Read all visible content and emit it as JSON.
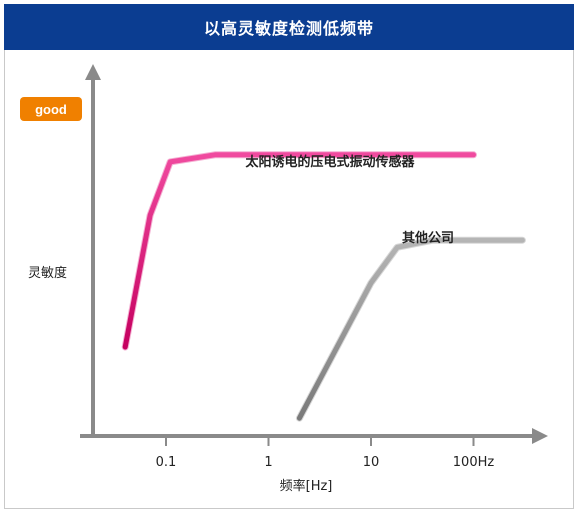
{
  "title": "以高灵敏度检测低频带",
  "chart_data": {
    "type": "line",
    "title": "以高灵敏度检测低频带",
    "xlabel": "频率[Hz]",
    "ylabel": "灵敏度",
    "x_scale": "log",
    "x_ticks": [
      "0.1",
      "1",
      "10",
      "100Hz"
    ],
    "y_top_badge": "good",
    "series": [
      {
        "name": "太阳诱电的压电式振动传感器",
        "color": "#e0197d",
        "points": [
          [
            0.04,
            0.25
          ],
          [
            0.07,
            0.62
          ],
          [
            0.11,
            0.77
          ],
          [
            0.3,
            0.79
          ],
          [
            100,
            0.79
          ]
        ]
      },
      {
        "name": "其他公司",
        "color": "#8c8c8c",
        "points": [
          [
            2,
            0.05
          ],
          [
            10,
            0.43
          ],
          [
            18,
            0.53
          ],
          [
            40,
            0.55
          ],
          [
            300,
            0.55
          ]
        ]
      }
    ]
  }
}
